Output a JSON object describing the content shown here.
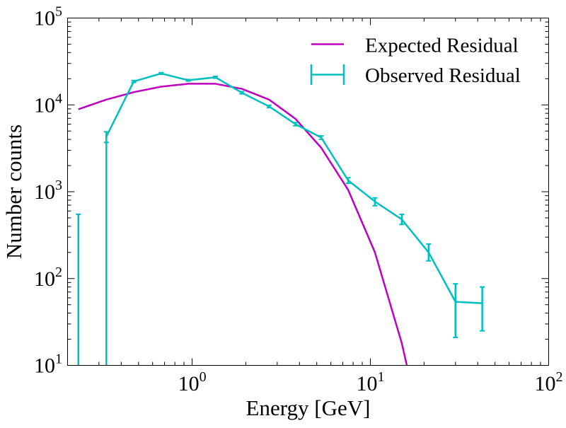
{
  "chart_data": {
    "type": "line",
    "xscale": "log",
    "yscale": "log",
    "xlim": [
      0.2,
      100
    ],
    "ylim": [
      10,
      100000
    ],
    "xlabel": "Energy [GeV]",
    "ylabel": "Number counts",
    "x_ticks": [
      {
        "value": 1,
        "base": "10",
        "exp": "0"
      },
      {
        "value": 10,
        "base": "10",
        "exp": "1"
      },
      {
        "value": 100,
        "base": "10",
        "exp": "2"
      }
    ],
    "y_ticks": [
      {
        "value": 10,
        "base": "10",
        "exp": "1"
      },
      {
        "value": 100,
        "base": "10",
        "exp": "2"
      },
      {
        "value": 1000,
        "base": "10",
        "exp": "3"
      },
      {
        "value": 10000,
        "base": "10",
        "exp": "4"
      },
      {
        "value": 100000,
        "base": "10",
        "exp": "5"
      }
    ],
    "legend_position": "top-right",
    "grid": false,
    "series": [
      {
        "name": "Expected Residual",
        "color": "#bf00bf",
        "style": "line",
        "points": [
          {
            "x": 0.23,
            "y": 8900
          },
          {
            "x": 0.33,
            "y": 11500
          },
          {
            "x": 0.47,
            "y": 14000
          },
          {
            "x": 0.67,
            "y": 16200
          },
          {
            "x": 0.95,
            "y": 17500
          },
          {
            "x": 1.35,
            "y": 17500
          },
          {
            "x": 1.9,
            "y": 15300
          },
          {
            "x": 2.7,
            "y": 11500
          },
          {
            "x": 3.8,
            "y": 6900
          },
          {
            "x": 5.3,
            "y": 3200
          },
          {
            "x": 7.5,
            "y": 1050
          },
          {
            "x": 10.6,
            "y": 200
          },
          {
            "x": 15.0,
            "y": 18
          },
          {
            "x": 16.0,
            "y": 10
          }
        ]
      },
      {
        "name": "Observed Residual",
        "color": "#00bfbf",
        "style": "errorbar",
        "points": [
          {
            "x": 0.33,
            "y": 4300,
            "ylow": 3700,
            "yhigh": 4900
          },
          {
            "x": 0.47,
            "y": 18600,
            "ylow": 18100,
            "yhigh": 19100
          },
          {
            "x": 0.67,
            "y": 23000,
            "ylow": 22500,
            "yhigh": 23500
          },
          {
            "x": 0.95,
            "y": 19200,
            "ylow": 18800,
            "yhigh": 19600
          },
          {
            "x": 1.35,
            "y": 20800,
            "ylow": 20300,
            "yhigh": 21300
          },
          {
            "x": 1.9,
            "y": 13800,
            "ylow": 13400,
            "yhigh": 14200
          },
          {
            "x": 2.7,
            "y": 9600,
            "ylow": 9300,
            "yhigh": 9900
          },
          {
            "x": 3.8,
            "y": 6000,
            "ylow": 5750,
            "yhigh": 6250
          },
          {
            "x": 5.3,
            "y": 4200,
            "ylow": 4000,
            "yhigh": 4400
          },
          {
            "x": 7.5,
            "y": 1350,
            "ylow": 1250,
            "yhigh": 1450
          },
          {
            "x": 10.6,
            "y": 770,
            "ylow": 690,
            "yhigh": 850
          },
          {
            "x": 15.0,
            "y": 480,
            "ylow": 420,
            "yhigh": 550
          },
          {
            "x": 21.2,
            "y": 200,
            "ylow": 160,
            "yhigh": 250
          },
          {
            "x": 30.0,
            "y": 54,
            "ylow": 21,
            "yhigh": 87
          },
          {
            "x": 42.4,
            "y": 52,
            "ylow": 25,
            "yhigh": 80
          }
        ],
        "isolated_errorbars": [
          {
            "x": 0.23,
            "yhigh": 550
          }
        ],
        "edge_lines": [
          {
            "x": 0.33
          }
        ]
      }
    ]
  }
}
